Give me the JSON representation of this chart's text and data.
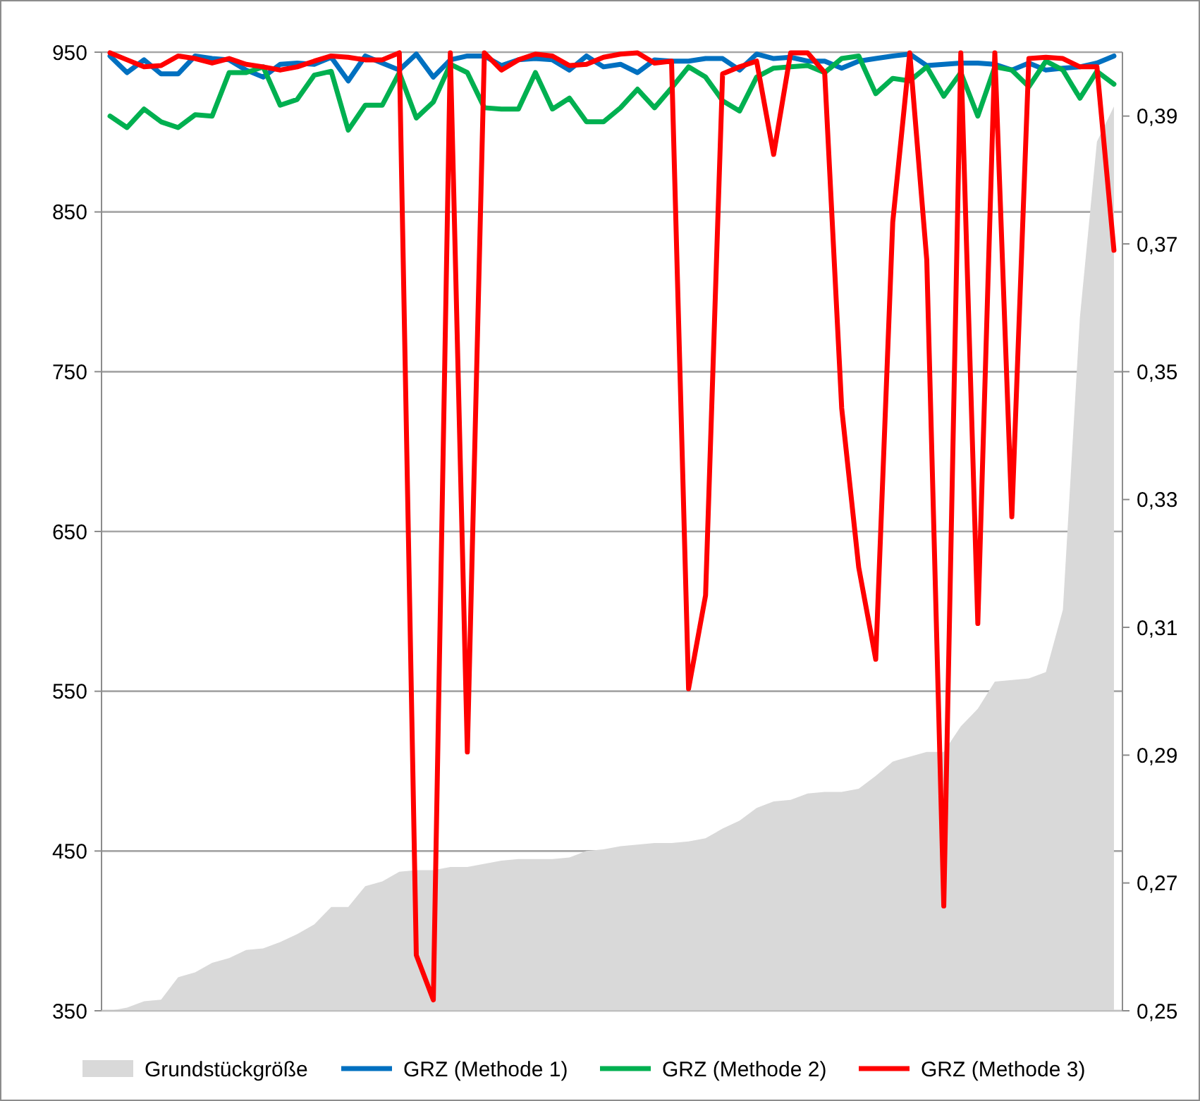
{
  "chart_data": {
    "type": "line",
    "categories": [
      null,
      null,
      null,
      null,
      null,
      null,
      null,
      null,
      null,
      null,
      null,
      null,
      null,
      null,
      null,
      null,
      null,
      null,
      null,
      null,
      null,
      null,
      null,
      null,
      null,
      null,
      null,
      null,
      null,
      null,
      null,
      null,
      null,
      null,
      null,
      null,
      null,
      null,
      null,
      null,
      null,
      null,
      null,
      null,
      null,
      null,
      null,
      null,
      null,
      null,
      null,
      null,
      null,
      null,
      null,
      null,
      null,
      null,
      null,
      null
    ],
    "series": [
      {
        "name": "Grundstückgröße",
        "type": "area",
        "color": "#d9d9d9",
        "values": [
          350,
          352,
          356,
          357,
          371,
          374,
          380,
          383,
          388,
          389,
          393,
          398,
          404,
          415,
          415,
          428,
          431,
          437,
          438,
          438,
          440,
          440,
          442,
          444,
          445,
          445,
          445,
          446,
          450,
          451,
          453,
          454,
          455,
          455,
          456,
          458,
          464,
          469,
          477,
          481,
          482,
          486,
          487,
          487,
          489,
          497,
          506,
          509,
          512,
          512,
          528,
          539,
          556,
          557,
          558,
          562,
          601,
          784,
          894,
          916
        ]
      },
      {
        "name": "GRZ (Methode 1)",
        "axis": "y2",
        "color": "#0070c0",
        "values": [
          0.3994,
          0.3968,
          0.3988,
          0.3966,
          0.3966,
          0.3994,
          0.399,
          0.3988,
          0.3972,
          0.3961,
          0.3981,
          0.3983,
          0.3981,
          0.3992,
          0.3955,
          0.3994,
          0.3983,
          0.3972,
          0.3997,
          0.3961,
          0.3988,
          0.3994,
          0.3994,
          0.3979,
          0.3988,
          0.399,
          0.3988,
          0.3972,
          0.3994,
          0.3977,
          0.3981,
          0.3968,
          0.3988,
          0.3986,
          0.3986,
          0.399,
          0.399,
          0.3972,
          0.3997,
          0.399,
          0.3992,
          0.3986,
          0.3986,
          0.3975,
          0.3986,
          0.399,
          0.3994,
          0.3997,
          0.3979,
          0.3981,
          0.3983,
          0.3983,
          0.3981,
          0.3972,
          0.3983,
          0.3972,
          0.3975,
          0.3977,
          0.3983,
          0.3994
        ]
      },
      {
        "name": "GRZ (Methode 2)",
        "axis": "y2",
        "color": "#00b050",
        "values": [
          0.39,
          0.3882,
          0.3911,
          0.3891,
          0.3882,
          0.3902,
          0.39,
          0.3968,
          0.3968,
          0.3977,
          0.3917,
          0.3926,
          0.3964,
          0.397,
          0.3878,
          0.3917,
          0.3917,
          0.3968,
          0.3897,
          0.3922,
          0.3981,
          0.3968,
          0.3913,
          0.3911,
          0.3911,
          0.3968,
          0.3911,
          0.3928,
          0.3891,
          0.3891,
          0.3913,
          0.3942,
          0.3913,
          0.3944,
          0.3977,
          0.3961,
          0.3924,
          0.3908,
          0.3961,
          0.3975,
          0.3977,
          0.3979,
          0.3968,
          0.399,
          0.3994,
          0.3935,
          0.3959,
          0.3955,
          0.3977,
          0.3931,
          0.3968,
          0.39,
          0.3977,
          0.3972,
          0.3946,
          0.3986,
          0.3972,
          0.3928,
          0.397,
          0.395
        ]
      },
      {
        "name": "GRZ (Methode 3)",
        "axis": "y2",
        "color": "#ff0000",
        "values": [
          0.3999,
          0.3988,
          0.3977,
          0.3979,
          0.3994,
          0.399,
          0.3983,
          0.399,
          0.3981,
          0.3977,
          0.3972,
          0.3977,
          0.3986,
          0.3994,
          0.3992,
          0.3988,
          0.3988,
          0.3999,
          0.2587,
          0.2517,
          0.3999,
          0.2905,
          0.3999,
          0.3972,
          0.3988,
          0.3997,
          0.3994,
          0.3979,
          0.3981,
          0.3992,
          0.3997,
          0.3999,
          0.3983,
          0.3986,
          0.3004,
          0.315,
          0.3966,
          0.3977,
          0.3986,
          0.384,
          0.3999,
          0.3999,
          0.3968,
          0.3443,
          0.3194,
          0.305,
          0.3734,
          0.3999,
          0.3675,
          0.2664,
          0.3999,
          0.3106,
          0.3999,
          0.3273,
          0.399,
          0.3992,
          0.399,
          0.3977,
          0.3977,
          0.369
        ]
      }
    ],
    "ylim": [
      350,
      950
    ],
    "yticks": [
      350,
      450,
      550,
      650,
      750,
      850,
      950
    ],
    "y2lim": [
      0.25,
      0.4
    ],
    "y2ticks": [
      {
        "value": 0.25,
        "label": "0,25"
      },
      {
        "value": 0.27,
        "label": "0,27"
      },
      {
        "value": 0.29,
        "label": "0,29"
      },
      {
        "value": 0.31,
        "label": "0,31"
      },
      {
        "value": 0.33,
        "label": "0,33"
      },
      {
        "value": 0.35,
        "label": "0,35"
      },
      {
        "value": 0.37,
        "label": "0,37"
      },
      {
        "value": 0.39,
        "label": "0,39"
      }
    ],
    "grid": "y",
    "legend": "bottom",
    "tick_labels": "y",
    "marker": "none",
    "line_style": "solid"
  }
}
